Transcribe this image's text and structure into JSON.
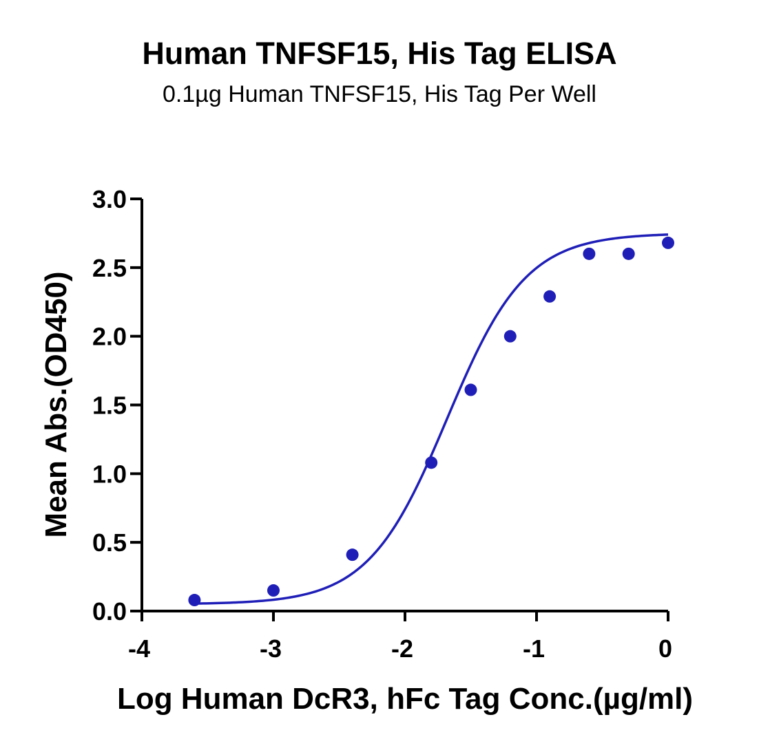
{
  "chart_data": {
    "type": "scatter",
    "title": "Human TNFSF15, His Tag ELISA",
    "subtitle": "0.1µg Human TNFSF15, His Tag Per Well",
    "xlabel": "Log Human DcR3, hFc Tag Conc.(µg/ml)",
    "ylabel": "Mean Abs.(OD450)",
    "xlim": [
      -4,
      0
    ],
    "ylim": [
      0,
      3.0
    ],
    "x_ticks": [
      -4,
      -3,
      -2,
      -1,
      0
    ],
    "x_tick_labels": [
      "-4",
      "-3",
      "-2",
      "-1",
      "0"
    ],
    "y_ticks": [
      0,
      0.5,
      1.0,
      1.5,
      2.0,
      2.5,
      3.0
    ],
    "y_tick_labels": [
      "0.0",
      "0.5",
      "1.0",
      "1.5",
      "2.0",
      "2.5",
      "3.0"
    ],
    "grid": false,
    "color": "#1f1fb8",
    "points": {
      "x": [
        -3.6,
        -3.0,
        -2.4,
        -1.8,
        -1.5,
        -1.2,
        -0.9,
        -0.6,
        -0.3,
        0.0
      ],
      "y": [
        0.08,
        0.15,
        0.41,
        1.08,
        1.61,
        2.0,
        2.29,
        2.6,
        2.6,
        2.68
      ]
    },
    "fit_curve": {
      "model": "4PL",
      "bottom": 0.05,
      "top": 2.75,
      "logEC50": -1.68,
      "hill_slope": 1.45
    }
  }
}
